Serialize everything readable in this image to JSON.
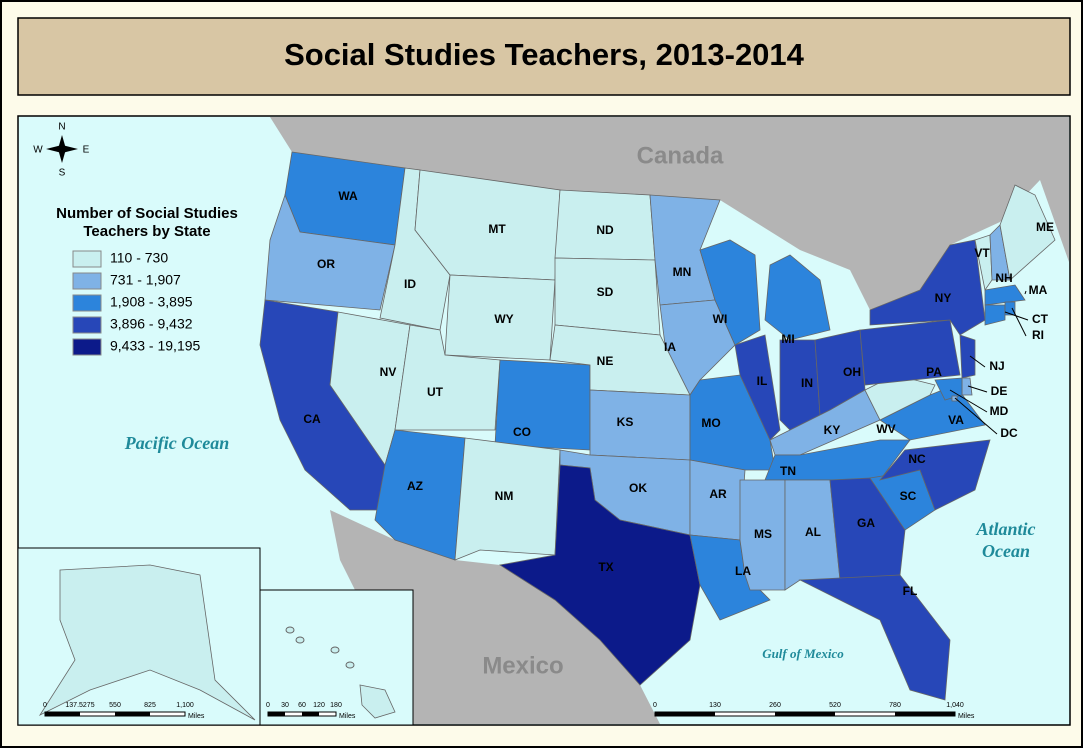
{
  "header": {
    "title": "Social Studies Teachers, 2013-2014"
  },
  "legend": {
    "title": [
      "Number of Social Studies",
      "Teachers by State"
    ],
    "classes": [
      {
        "label": "110 - 730",
        "color": "#c9efef"
      },
      {
        "label": "731 - 1,907",
        "color": "#7fb2e6"
      },
      {
        "label": "1,908 - 3,895",
        "color": "#2c84dc"
      },
      {
        "label": "3,896 - 9,432",
        "color": "#2747b8"
      },
      {
        "label": "9,433 - 19,195",
        "color": "#0c1a8a"
      }
    ]
  },
  "compass": {
    "n": "N",
    "e": "E",
    "s": "S",
    "w": "W"
  },
  "places": {
    "canada": "Canada",
    "mexico": "Mexico",
    "pacific": "Pacific Ocean",
    "atlantic": [
      "Atlantic",
      "Ocean"
    ],
    "gulf": "Gulf of Mexico"
  },
  "states": [
    {
      "label": "WA",
      "class": 2
    },
    {
      "label": "OR",
      "class": 1
    },
    {
      "label": "CA",
      "class": 3
    },
    {
      "label": "NV",
      "class": 0
    },
    {
      "label": "ID",
      "class": 0
    },
    {
      "label": "MT",
      "class": 0
    },
    {
      "label": "WY",
      "class": 0
    },
    {
      "label": "UT",
      "class": 0
    },
    {
      "label": "CO",
      "class": 2
    },
    {
      "label": "AZ",
      "class": 2
    },
    {
      "label": "NM",
      "class": 0
    },
    {
      "label": "ND",
      "class": 0
    },
    {
      "label": "SD",
      "class": 0
    },
    {
      "label": "NE",
      "class": 0
    },
    {
      "label": "KS",
      "class": 1
    },
    {
      "label": "OK",
      "class": 1
    },
    {
      "label": "TX",
      "class": 4
    },
    {
      "label": "MN",
      "class": 1
    },
    {
      "label": "IA",
      "class": 1
    },
    {
      "label": "MO",
      "class": 2
    },
    {
      "label": "AR",
      "class": 1
    },
    {
      "label": "LA",
      "class": 2
    },
    {
      "label": "WI",
      "class": 2
    },
    {
      "label": "IL",
      "class": 3
    },
    {
      "label": "MI",
      "class": 2
    },
    {
      "label": "IN",
      "class": 3
    },
    {
      "label": "OH",
      "class": 3
    },
    {
      "label": "KY",
      "class": 1
    },
    {
      "label": "TN",
      "class": 2
    },
    {
      "label": "MS",
      "class": 1
    },
    {
      "label": "AL",
      "class": 1
    },
    {
      "label": "GA",
      "class": 3
    },
    {
      "label": "FL",
      "class": 3
    },
    {
      "label": "SC",
      "class": 2
    },
    {
      "label": "NC",
      "class": 3
    },
    {
      "label": "VA",
      "class": 2
    },
    {
      "label": "WV",
      "class": 0
    },
    {
      "label": "PA",
      "class": 3
    },
    {
      "label": "NY",
      "class": 3
    },
    {
      "label": "VT",
      "class": 0
    },
    {
      "label": "NH",
      "class": 1
    },
    {
      "label": "ME",
      "class": 0
    },
    {
      "label": "MA",
      "class": 2
    },
    {
      "label": "CT",
      "class": 2
    },
    {
      "label": "RI",
      "class": 2
    },
    {
      "label": "NJ",
      "class": 3
    },
    {
      "label": "DE",
      "class": 1
    },
    {
      "label": "MD",
      "class": 2
    },
    {
      "label": "DC",
      "class": 1
    },
    {
      "label": "AK",
      "class": 0
    },
    {
      "label": "HI",
      "class": 0
    }
  ],
  "scales": [
    {
      "labels": [
        "0",
        "137.5275",
        "550",
        "825",
        "1,100"
      ],
      "unit": "Miles"
    },
    {
      "labels": [
        "0",
        "30",
        "60",
        "120",
        "180"
      ],
      "unit": "Miles"
    },
    {
      "labels": [
        "0",
        "130",
        "260",
        "520",
        "780",
        "1,040"
      ],
      "unit": "Miles"
    }
  ]
}
